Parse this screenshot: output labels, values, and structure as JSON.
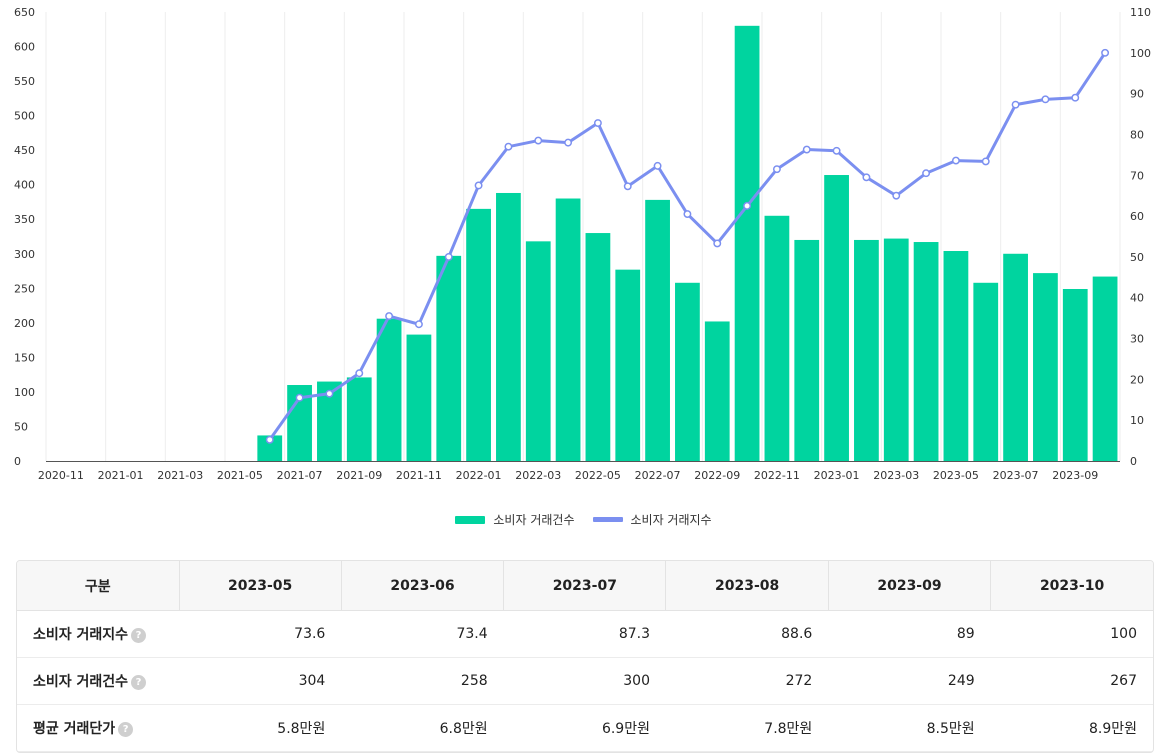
{
  "chart_data": {
    "type": "bar+line",
    "title": "",
    "left_ylim": [
      0,
      650
    ],
    "left_ticks": [
      0,
      50,
      100,
      150,
      200,
      250,
      300,
      350,
      400,
      450,
      500,
      550,
      600,
      650
    ],
    "right_ylim": [
      0,
      110
    ],
    "right_ticks": [
      0,
      10,
      20,
      30,
      40,
      50,
      60,
      70,
      80,
      90,
      100,
      110
    ],
    "categories": [
      "2020-11",
      "2020-12",
      "2021-01",
      "2021-02",
      "2021-03",
      "2021-04",
      "2021-05",
      "2021-06",
      "2021-07",
      "2021-08",
      "2021-09",
      "2021-10",
      "2021-11",
      "2021-12",
      "2022-01",
      "2022-02",
      "2022-03",
      "2022-04",
      "2022-05",
      "2022-06",
      "2022-07",
      "2022-08",
      "2022-09",
      "2022-10",
      "2022-11",
      "2022-12",
      "2023-01",
      "2023-02",
      "2023-03",
      "2023-04",
      "2023-05",
      "2023-06",
      "2023-07",
      "2023-08",
      "2023-09",
      "2023-10"
    ],
    "x_tick_labels": [
      "2020-11",
      "2021-01",
      "2021-03",
      "2021-05",
      "2021-07",
      "2021-09",
      "2021-11",
      "2022-01",
      "2022-03",
      "2022-05",
      "2022-07",
      "2022-09",
      "2022-11",
      "2023-01",
      "2023-03",
      "2023-05",
      "2023-07",
      "2023-09"
    ],
    "series": [
      {
        "name": "소비자 거래건수",
        "type": "bar",
        "axis": "left",
        "color": "#00d49f",
        "values": [
          null,
          null,
          null,
          null,
          null,
          null,
          null,
          37,
          110,
          115,
          121,
          206,
          183,
          297,
          365,
          388,
          318,
          380,
          330,
          277,
          378,
          258,
          202,
          630,
          355,
          320,
          414,
          320,
          322,
          317,
          304,
          258,
          300,
          272,
          249,
          267
        ]
      },
      {
        "name": "소비자 거래지수",
        "type": "line",
        "axis": "right",
        "color": "#7b8ff0",
        "values": [
          null,
          null,
          null,
          null,
          null,
          null,
          null,
          5.2,
          15.5,
          16.5,
          21.5,
          35.5,
          33.5,
          50,
          67.5,
          77,
          78.5,
          78,
          82.8,
          67.3,
          72.3,
          60.5,
          53.3,
          62.5,
          71.5,
          76.3,
          76,
          69.5,
          65,
          70.5,
          73.6,
          73.4,
          87.3,
          88.6,
          89,
          100
        ]
      }
    ]
  },
  "legend": {
    "count_label": "소비자 거래건수",
    "index_label": "소비자 거래지수"
  },
  "table": {
    "header_label": "구분",
    "months": [
      "2023-05",
      "2023-06",
      "2023-07",
      "2023-08",
      "2023-09",
      "2023-10"
    ],
    "help_glyph": "?",
    "rows": [
      {
        "label": "소비자 거래지수",
        "values": [
          "73.6",
          "73.4",
          "87.3",
          "88.6",
          "89",
          "100"
        ]
      },
      {
        "label": "소비자 거래건수",
        "values": [
          "304",
          "258",
          "300",
          "272",
          "249",
          "267"
        ]
      },
      {
        "label": "평균 거래단가",
        "values": [
          "5.8만원",
          "6.8만원",
          "6.9만원",
          "7.8만원",
          "8.5만원",
          "8.9만원"
        ]
      }
    ]
  }
}
